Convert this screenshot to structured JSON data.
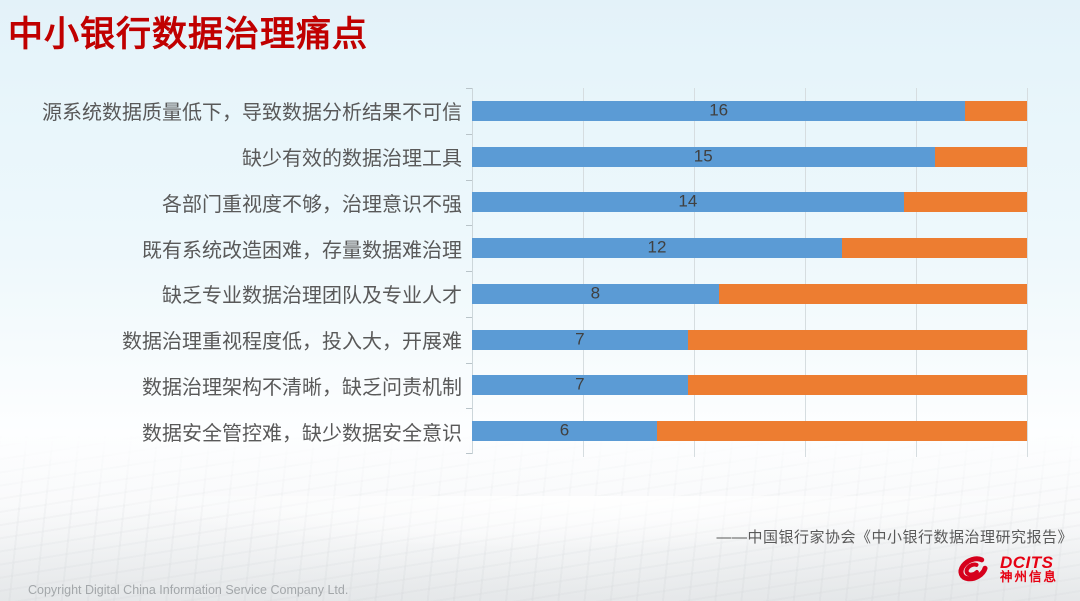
{
  "slide": {
    "title": "中小银行数据治理痛点",
    "source_citation": "——中国银行家协会《中小银行数据治理研究报告》",
    "copyright": "Copyright  Digital China Information Service Company Ltd.",
    "logo": {
      "brand": "DCITS",
      "brand_cn": "神州信息"
    }
  },
  "colors": {
    "title_red": "#C00000",
    "bar_blue": "#5B9BD5",
    "bar_orange": "#ED7D31",
    "category_label_gray": "#595959",
    "value_label_gray": "#404040",
    "gridline_gray": "#D6DDE0",
    "logo_red": "#E60012"
  },
  "chart_data": {
    "type": "bar",
    "subtype": "horizontal_100pct_stacked",
    "title": "",
    "xlabel": "",
    "ylabel": "",
    "categories": [
      "源系统数据质量低下，导致数据分析结果不可信",
      "缺少有效的数据治理工具",
      "各部门重视度不够，治理意识不强",
      "既有系统改造困难，存量数据难治理",
      "缺乏专业数据治理团队及专业人才",
      "数据治理重视程度低，投入大，开展难",
      "数据治理架构不清晰，缺乏问责机制",
      "数据安全管控难，缺少数据安全意识"
    ],
    "series": [
      {
        "name": "blue-segment",
        "color": "#5B9BD5",
        "values": [
          16,
          15,
          14,
          12,
          8,
          7,
          7,
          6
        ],
        "data_labels_shown": true
      },
      {
        "name": "orange-segment",
        "color": "#ED7D31",
        "values": [
          2,
          3,
          4,
          6,
          10,
          11,
          11,
          12
        ],
        "data_labels_shown": false
      }
    ],
    "row_total": 18,
    "data_labels": [
      16,
      15,
      14,
      12,
      8,
      7,
      7,
      6
    ],
    "axis_percent_range": [
      0,
      100
    ],
    "gridlines_percent": [
      20,
      40,
      60,
      80,
      100
    ],
    "grid": true,
    "legend": "none"
  }
}
